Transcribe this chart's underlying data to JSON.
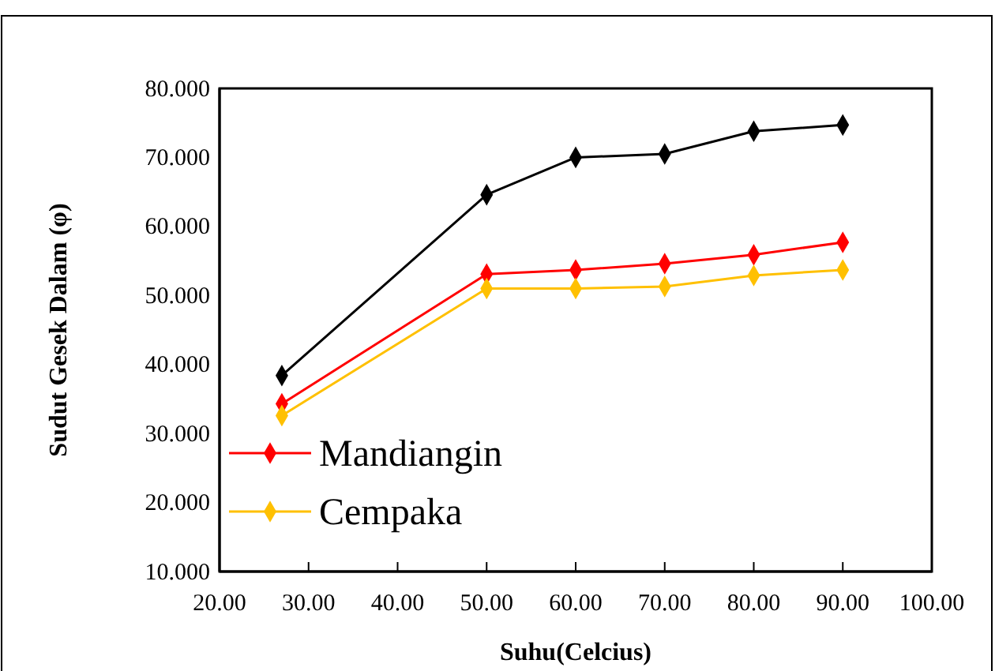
{
  "chart_data": {
    "type": "line",
    "xlabel": "Suhu(Celcius)",
    "ylabel": "Sudut Gesek Dalam (φ)",
    "x": [
      27,
      50,
      60,
      70,
      80,
      90
    ],
    "series": [
      {
        "color": "#000000",
        "values": [
          38.4,
          64.6,
          70.0,
          70.5,
          73.8,
          74.7
        ]
      },
      {
        "name": "Mandiangin",
        "color": "#ff0000",
        "values": [
          34.3,
          53.1,
          53.7,
          54.6,
          55.9,
          57.7
        ]
      },
      {
        "name": "Cempaka",
        "color": "#ffc000",
        "values": [
          32.6,
          51.0,
          51.0,
          51.3,
          52.9,
          53.7
        ]
      }
    ],
    "xlim": [
      20,
      100
    ],
    "xticks": [
      {
        "value": 20,
        "label": "20.00"
      },
      {
        "value": 30,
        "label": "30.00"
      },
      {
        "value": 40,
        "label": "40.00"
      },
      {
        "value": 50,
        "label": "50.00"
      },
      {
        "value": 60,
        "label": "60.00"
      },
      {
        "value": 70,
        "label": "70.00"
      },
      {
        "value": 80,
        "label": "80.00"
      },
      {
        "value": 90,
        "label": "90.00"
      },
      {
        "value": 100,
        "label": "100.00"
      }
    ],
    "ylim": [
      10,
      80
    ],
    "yticks": [
      {
        "value": 10,
        "label": "10.000"
      },
      {
        "value": 20,
        "label": "20.000"
      },
      {
        "value": 30,
        "label": "30.000"
      },
      {
        "value": 40,
        "label": "40.000"
      },
      {
        "value": 50,
        "label": "50.000"
      },
      {
        "value": 60,
        "label": "60.000"
      },
      {
        "value": 70,
        "label": "70.000"
      },
      {
        "value": 80,
        "label": "80.000"
      }
    ],
    "marker": "diamond",
    "legend": "bottom left",
    "grid": false
  }
}
